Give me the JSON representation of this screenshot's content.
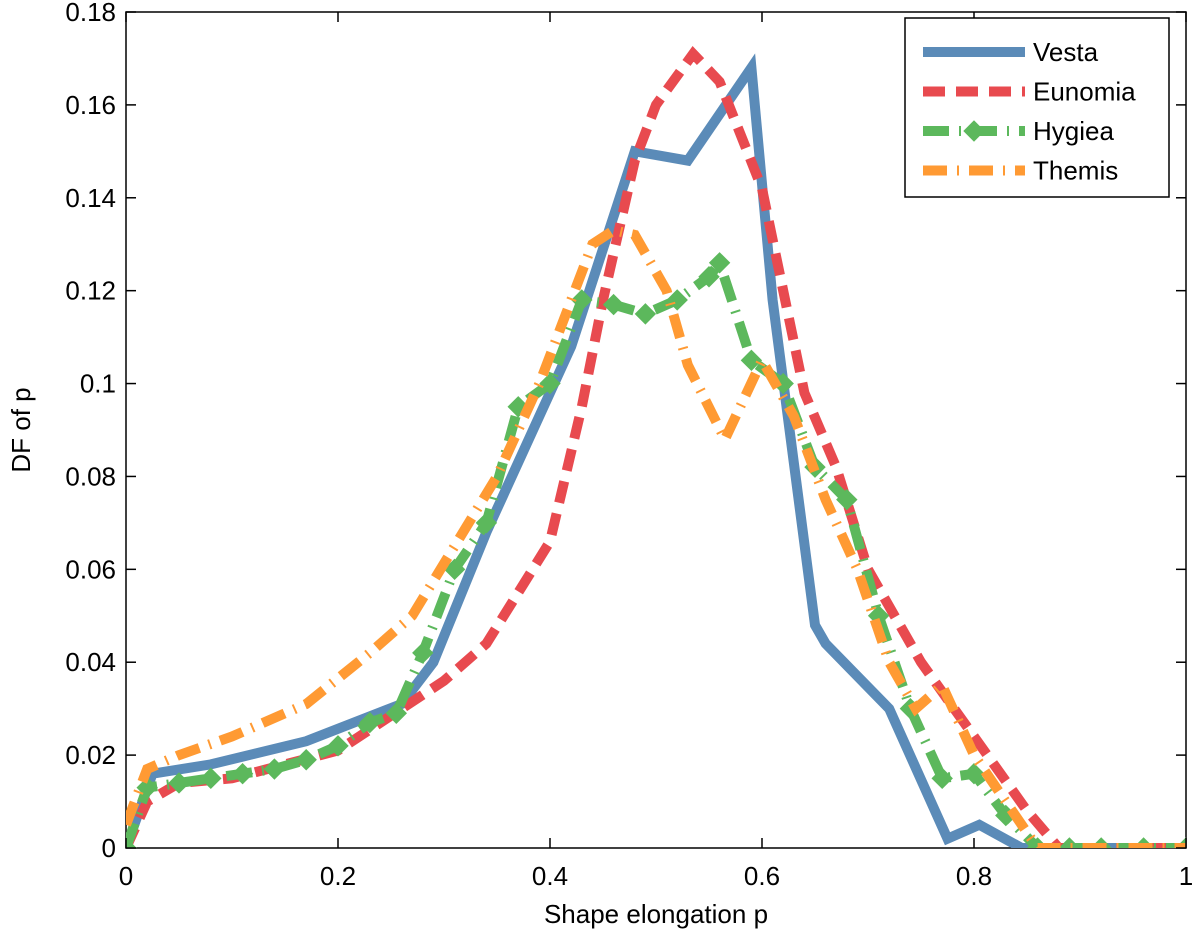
{
  "chart_data": {
    "type": "line",
    "title": "",
    "xlabel": "Shape elongation p",
    "ylabel": "DF of p",
    "xlim": [
      0,
      1
    ],
    "ylim": [
      0,
      0.18
    ],
    "xticks": [
      0,
      0.2,
      0.4,
      0.6,
      0.8,
      1
    ],
    "xtick_labels": [
      "0",
      "0.2",
      "0.4",
      "0.6",
      "0.8",
      "1"
    ],
    "yticks": [
      0,
      0.02,
      0.04,
      0.06,
      0.08,
      0.1,
      0.12,
      0.14,
      0.16,
      0.18
    ],
    "ytick_labels": [
      "0",
      "0.02",
      "0.04",
      "0.06",
      "0.08",
      "0.1",
      "0.12",
      "0.14",
      "0.16",
      "0.18"
    ],
    "grid": false,
    "legend_position": "top-right",
    "series": [
      {
        "name": "Vesta",
        "color": "#5b8bb8",
        "style": "solid",
        "marker": "none",
        "x": [
          0,
          0.025,
          0.08,
          0.17,
          0.26,
          0.29,
          0.34,
          0.4,
          0.42,
          0.44,
          0.48,
          0.53,
          0.59,
          0.61,
          0.65,
          0.66,
          0.72,
          0.775,
          0.805,
          0.845,
          0.875,
          1.0
        ],
        "y": [
          0,
          0.016,
          0.018,
          0.023,
          0.031,
          0.04,
          0.068,
          0.098,
          0.108,
          0.122,
          0.15,
          0.148,
          0.168,
          0.118,
          0.048,
          0.044,
          0.03,
          0.002,
          0.005,
          0,
          0,
          0
        ]
      },
      {
        "name": "Eunomia",
        "color": "#e84a4f",
        "style": "dashed",
        "marker": "none",
        "x": [
          0,
          0.02,
          0.05,
          0.1,
          0.2,
          0.26,
          0.3,
          0.34,
          0.37,
          0.4,
          0.43,
          0.45,
          0.48,
          0.5,
          0.535,
          0.56,
          0.6,
          0.64,
          0.67,
          0.7,
          0.75,
          0.8,
          0.85,
          0.88,
          1.0
        ],
        "y": [
          0,
          0.01,
          0.014,
          0.015,
          0.021,
          0.03,
          0.036,
          0.044,
          0.055,
          0.066,
          0.095,
          0.118,
          0.148,
          0.16,
          0.171,
          0.165,
          0.142,
          0.098,
          0.082,
          0.06,
          0.04,
          0.024,
          0.008,
          0,
          0
        ]
      },
      {
        "name": "Hygiea",
        "color": "#5cb85c",
        "style": "dashdot",
        "marker": "diamond",
        "x": [
          0,
          0.02,
          0.05,
          0.08,
          0.11,
          0.14,
          0.17,
          0.2,
          0.23,
          0.255,
          0.28,
          0.31,
          0.34,
          0.37,
          0.4,
          0.43,
          0.46,
          0.49,
          0.52,
          0.55,
          0.56,
          0.59,
          0.62,
          0.65,
          0.68,
          0.71,
          0.74,
          0.77,
          0.8,
          0.83,
          0.86,
          0.89,
          0.92,
          0.96,
          1.0
        ],
        "y": [
          0,
          0.013,
          0.014,
          0.015,
          0.016,
          0.017,
          0.019,
          0.022,
          0.027,
          0.029,
          0.042,
          0.06,
          0.07,
          0.095,
          0.1,
          0.118,
          0.117,
          0.115,
          0.118,
          0.123,
          0.126,
          0.105,
          0.1,
          0.082,
          0.075,
          0.05,
          0.03,
          0.015,
          0.016,
          0.007,
          0,
          0,
          0,
          0,
          0
        ]
      },
      {
        "name": "Themis",
        "color": "#ff9a33",
        "style": "dashdot",
        "marker": "none",
        "x": [
          0,
          0.02,
          0.05,
          0.1,
          0.17,
          0.23,
          0.27,
          0.31,
          0.35,
          0.39,
          0.42,
          0.44,
          0.46,
          0.48,
          0.51,
          0.53,
          0.565,
          0.6,
          0.63,
          0.66,
          0.69,
          0.72,
          0.745,
          0.77,
          0.8,
          0.83,
          0.86,
          1.0
        ],
        "y": [
          0.005,
          0.017,
          0.02,
          0.024,
          0.031,
          0.042,
          0.05,
          0.065,
          0.08,
          0.1,
          0.118,
          0.13,
          0.133,
          0.132,
          0.12,
          0.104,
          0.088,
          0.105,
          0.093,
          0.075,
          0.06,
          0.04,
          0.03,
          0.035,
          0.02,
          0.01,
          0,
          0
        ]
      }
    ]
  }
}
